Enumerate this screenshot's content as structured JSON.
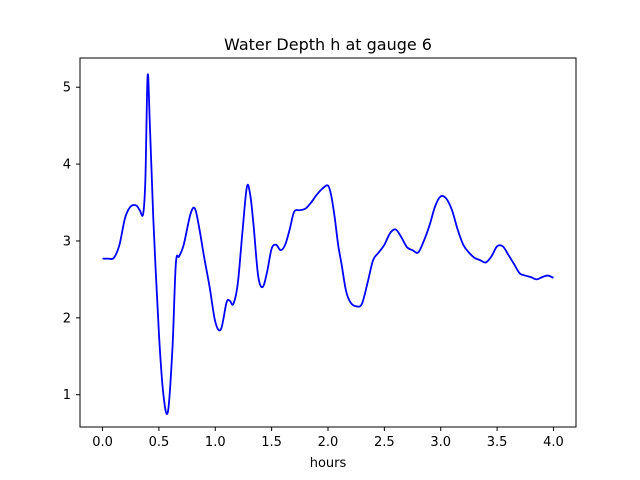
{
  "chart_data": {
    "type": "line",
    "title": "Water Depth h at gauge 6",
    "xlabel": "hours",
    "ylabel": "",
    "xlim": [
      -0.2,
      4.2
    ],
    "ylim": [
      0.58,
      5.38
    ],
    "xticks": [
      0.0,
      0.5,
      1.0,
      1.5,
      2.0,
      2.5,
      3.0,
      3.5,
      4.0
    ],
    "xtick_labels": [
      "0.0",
      "0.5",
      "1.0",
      "1.5",
      "2.0",
      "2.5",
      "3.0",
      "3.5",
      "4.0"
    ],
    "yticks": [
      1,
      2,
      3,
      4,
      5
    ],
    "ytick_labels": [
      "1",
      "2",
      "3",
      "4",
      "5"
    ],
    "grid": false,
    "series": [
      {
        "color": "#0000ff",
        "x": [
          0.0,
          0.05,
          0.1,
          0.15,
          0.2,
          0.25,
          0.3,
          0.33,
          0.36,
          0.38,
          0.4,
          0.42,
          0.45,
          0.5,
          0.54,
          0.58,
          0.62,
          0.65,
          0.68,
          0.72,
          0.78,
          0.82,
          0.86,
          0.9,
          0.95,
          1.0,
          1.05,
          1.1,
          1.13,
          1.16,
          1.2,
          1.24,
          1.28,
          1.31,
          1.34,
          1.38,
          1.42,
          1.46,
          1.5,
          1.54,
          1.58,
          1.62,
          1.66,
          1.7,
          1.75,
          1.8,
          1.85,
          1.9,
          1.95,
          2.0,
          2.03,
          2.06,
          2.09,
          2.12,
          2.16,
          2.2,
          2.25,
          2.3,
          2.35,
          2.4,
          2.45,
          2.5,
          2.55,
          2.6,
          2.65,
          2.7,
          2.75,
          2.8,
          2.85,
          2.9,
          2.95,
          3.0,
          3.05,
          3.1,
          3.15,
          3.2,
          3.25,
          3.3,
          3.35,
          3.4,
          3.45,
          3.5,
          3.55,
          3.6,
          3.65,
          3.7,
          3.75,
          3.8,
          3.85,
          3.9,
          3.95,
          4.0
        ],
        "y": [
          2.77,
          2.77,
          2.78,
          2.95,
          3.3,
          3.45,
          3.46,
          3.4,
          3.35,
          3.8,
          5.15,
          4.5,
          3.3,
          1.8,
          1.0,
          0.78,
          1.6,
          2.7,
          2.8,
          2.95,
          3.35,
          3.42,
          3.15,
          2.8,
          2.4,
          1.95,
          1.85,
          2.2,
          2.22,
          2.18,
          2.45,
          3.1,
          3.7,
          3.6,
          3.2,
          2.55,
          2.4,
          2.6,
          2.9,
          2.95,
          2.88,
          2.95,
          3.15,
          3.38,
          3.4,
          3.42,
          3.5,
          3.6,
          3.68,
          3.72,
          3.58,
          3.3,
          2.95,
          2.7,
          2.35,
          2.2,
          2.15,
          2.18,
          2.45,
          2.75,
          2.85,
          2.95,
          3.1,
          3.15,
          3.05,
          2.92,
          2.88,
          2.85,
          3.0,
          3.2,
          3.45,
          3.58,
          3.55,
          3.4,
          3.15,
          2.95,
          2.85,
          2.78,
          2.75,
          2.72,
          2.8,
          2.93,
          2.93,
          2.82,
          2.7,
          2.58,
          2.55,
          2.53,
          2.5,
          2.53,
          2.55,
          2.52
        ]
      }
    ]
  }
}
